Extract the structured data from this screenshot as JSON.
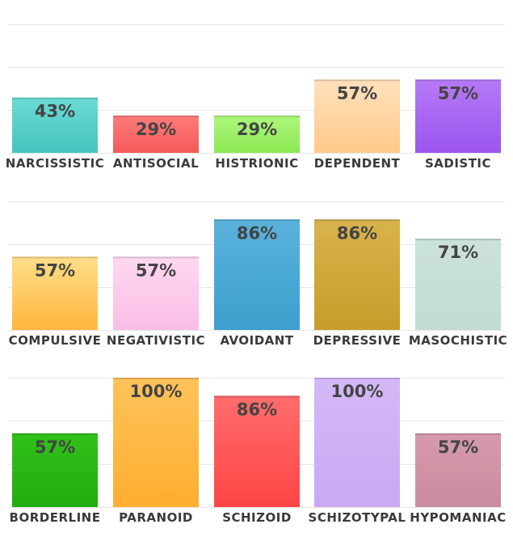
{
  "chart_data": [
    {
      "type": "bar",
      "categories": [
        "NARCISSISTIC",
        "ANTISOCIAL",
        "HISTRIONIC",
        "DEPENDENT",
        "SADISTIC"
      ],
      "values": [
        43,
        29,
        29,
        57,
        57
      ],
      "labels": [
        "43%",
        "29%",
        "29%",
        "57%",
        "57%"
      ],
      "colors": [
        [
          "#6adbd4",
          "#45c4bd"
        ],
        [
          "#ff7b7b",
          "#f25a5a"
        ],
        [
          "#aef77e",
          "#8ae852"
        ],
        [
          "#ffe0bb",
          "#ffc98a"
        ],
        [
          "#b67af7",
          "#9b55ef"
        ]
      ],
      "ylim": [
        0,
        100
      ]
    },
    {
      "type": "bar",
      "categories": [
        "COMPULSIVE",
        "NEGATIVISTIC",
        "AVOIDANT",
        "DEPRESSIVE",
        "MASOCHISTIC"
      ],
      "values": [
        57,
        57,
        86,
        86,
        71
      ],
      "labels": [
        "57%",
        "57%",
        "86%",
        "86%",
        "71%"
      ],
      "colors": [
        [
          "#ffdf8a",
          "#ffb63d"
        ],
        [
          "#ffd8f0",
          "#f9bde6"
        ],
        [
          "#5ab2dc",
          "#3c9fcd"
        ],
        [
          "#d8b34c",
          "#c69d2b"
        ],
        [
          "#cce2d8",
          "#c3dbd1"
        ]
      ],
      "ylim": [
        0,
        100
      ]
    },
    {
      "type": "bar",
      "categories": [
        "BORDERLINE",
        "PARANOID",
        "SCHIZOID",
        "SCHIZOTYPAL",
        "HYPOMANIAC"
      ],
      "values": [
        57,
        100,
        86,
        100,
        57
      ],
      "labels": [
        "57%",
        "100%",
        "86%",
        "100%",
        "57%"
      ],
      "colors": [
        [
          "#32c11a",
          "#21ac0d"
        ],
        [
          "#ffc35a",
          "#ffae30"
        ],
        [
          "#ff6c6c",
          "#ff4545"
        ],
        [
          "#d4b8f7",
          "#c9a9f3"
        ],
        [
          "#d59aab",
          "#c98c9e"
        ]
      ],
      "ylim": [
        0,
        100
      ]
    }
  ]
}
